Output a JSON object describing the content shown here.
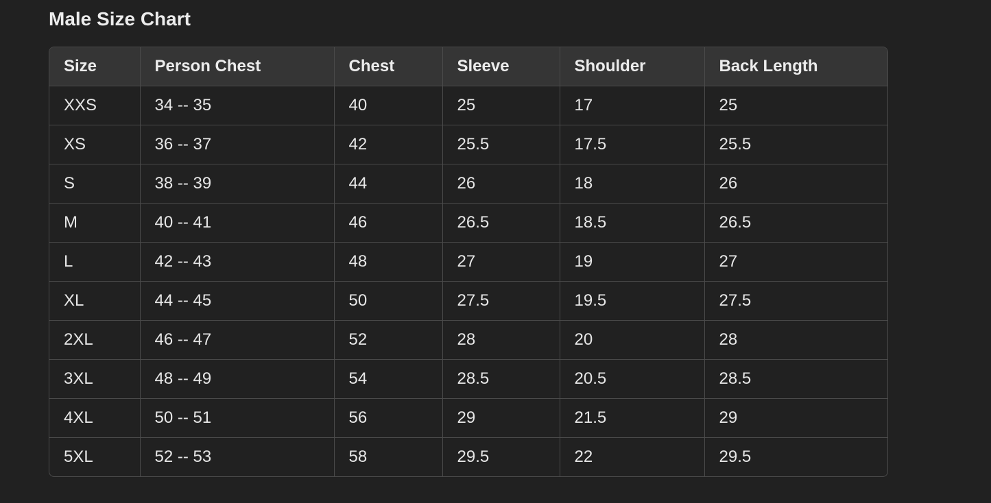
{
  "title": "Male Size Chart",
  "table": {
    "headers": [
      "Size",
      "Person Chest",
      "Chest",
      "Sleeve",
      "Shoulder",
      "Back Length"
    ],
    "rows": [
      [
        "XXS",
        "34 -- 35",
        "40",
        "25",
        "17",
        "25"
      ],
      [
        "XS",
        "36 -- 37",
        "42",
        "25.5",
        "17.5",
        "25.5"
      ],
      [
        "S",
        "38 -- 39",
        "44",
        "26",
        "18",
        "26"
      ],
      [
        "M",
        "40 -- 41",
        "46",
        "26.5",
        "18.5",
        "26.5"
      ],
      [
        "L",
        "42 -- 43",
        "48",
        "27",
        "19",
        "27"
      ],
      [
        "XL",
        "44 -- 45",
        "50",
        "27.5",
        "19.5",
        "27.5"
      ],
      [
        "2XL",
        "46 -- 47",
        "52",
        "28",
        "20",
        "28"
      ],
      [
        "3XL",
        "48 -- 49",
        "54",
        "28.5",
        "20.5",
        "28.5"
      ],
      [
        "4XL",
        "50 -- 51",
        "56",
        "29",
        "21.5",
        "29"
      ],
      [
        "5XL",
        "52 -- 53",
        "58",
        "29.5",
        "22",
        "29.5"
      ]
    ]
  }
}
